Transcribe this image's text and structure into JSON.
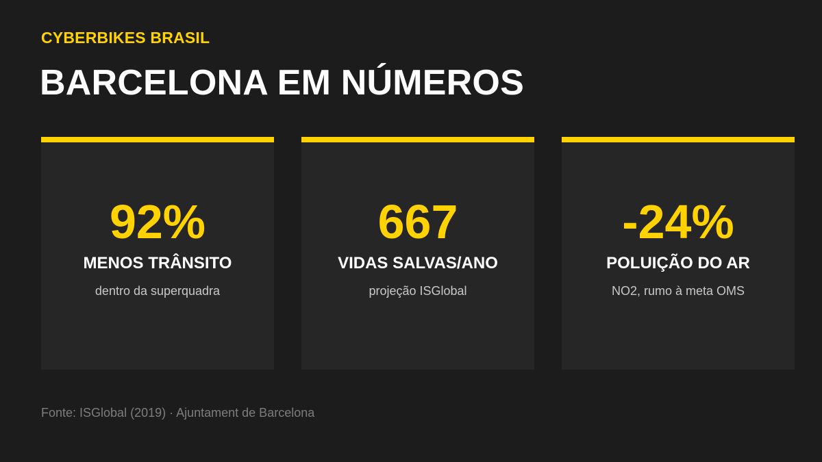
{
  "header": {
    "brand": "CYBERBIKES BRASIL",
    "title": "BARCELONA EM NÚMEROS"
  },
  "stats": [
    {
      "value": "92%",
      "label": "MENOS TRÂNSITO",
      "description": "dentro da superquadra"
    },
    {
      "value": "667",
      "label": "VIDAS SALVAS/ANO",
      "description": "projeção ISGlobal"
    },
    {
      "value": "-24%",
      "label": "POLUIÇÃO DO AR",
      "description": "NO2, rumo à meta OMS"
    }
  ],
  "footer": {
    "source": "Fonte: ISGlobal (2019) · Ajuntament de Barcelona"
  },
  "colors": {
    "background": "#1c1c1c",
    "card_background": "#262626",
    "accent": "#ffd200",
    "text_primary": "#ffffff",
    "text_secondary": "#c8c8c8",
    "text_muted": "#7d7d7d"
  }
}
